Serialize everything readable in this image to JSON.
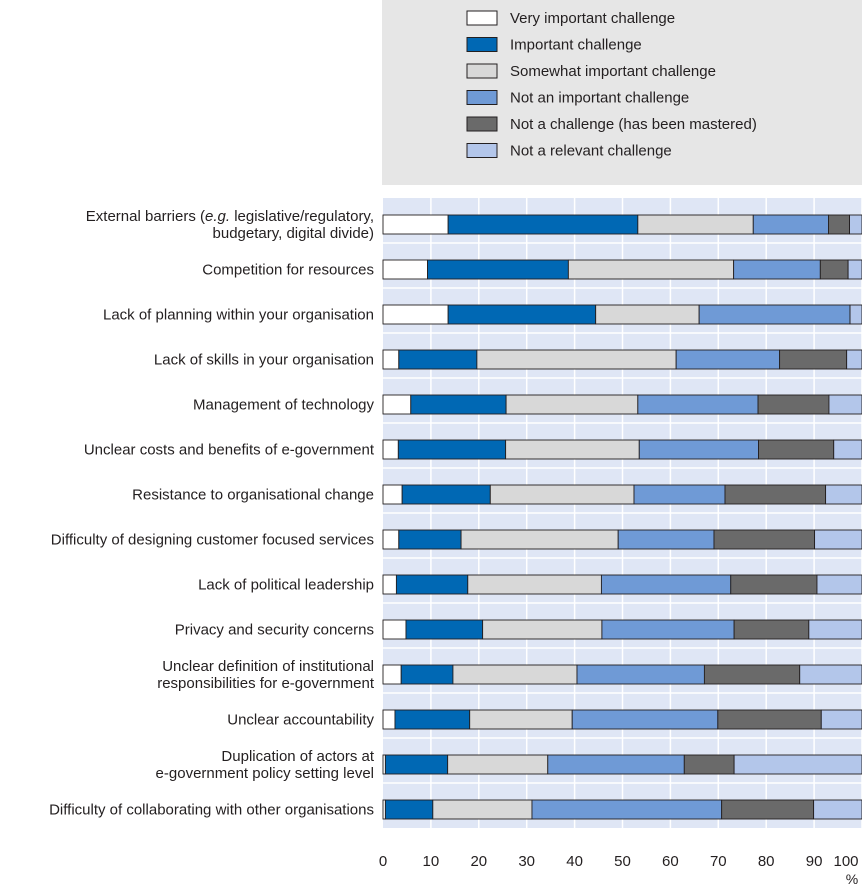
{
  "chart_data": {
    "type": "bar",
    "orientation": "horizontal",
    "stacked": true,
    "xlim": [
      0,
      100
    ],
    "x_ticks": [
      "0",
      "10",
      "20",
      "30",
      "40",
      "50",
      "60",
      "70",
      "80",
      "90",
      "100"
    ],
    "unit_label": "%",
    "grid": true,
    "legend_position": "top",
    "categories": [
      [
        "External barriers (e.g. legislative/regulatory,",
        "budgetary, digital divide)"
      ],
      [
        "Competition for resources"
      ],
      [
        "Lack of planning within your organisation"
      ],
      [
        "Lack of skills in your organisation"
      ],
      [
        "Management of technology"
      ],
      [
        "Unclear costs and benefits of e-government"
      ],
      [
        "Resistance to organisational change"
      ],
      [
        "Difficulty of designing customer focused services"
      ],
      [
        "Lack of political leadership"
      ],
      [
        "Privacy and security concerns"
      ],
      [
        "Unclear definition of institutional",
        "responsibilities for e-government"
      ],
      [
        "Unclear accountability"
      ],
      [
        "Duplication of actors at",
        "e-government policy setting level"
      ],
      [
        "Difficulty of collaborating with other organisations"
      ]
    ],
    "series": [
      {
        "name": "Very important challenge",
        "color": "#ffffff",
        "values": [
          13.6,
          9.3,
          13.6,
          3.3,
          5.8,
          3.2,
          4.0,
          3.3,
          2.8,
          4.8,
          3.8,
          2.5,
          0.5,
          0.5
        ]
      },
      {
        "name": "Important challenge",
        "color": "#0068b4",
        "values": [
          39.6,
          29.4,
          30.8,
          16.3,
          19.9,
          22.4,
          18.4,
          13.0,
          14.9,
          16.0,
          10.8,
          15.6,
          13.0,
          9.9
        ]
      },
      {
        "name": "Somewhat important challenge",
        "color": "#d8d8d8",
        "values": [
          24.1,
          34.5,
          21.6,
          41.6,
          27.5,
          27.9,
          30.0,
          32.8,
          27.9,
          24.9,
          25.9,
          21.4,
          20.9,
          20.7
        ]
      },
      {
        "name": "Not an important challenge",
        "color": "#6f9ad6",
        "values": [
          15.7,
          18.1,
          31.5,
          21.6,
          25.1,
          24.9,
          19.0,
          20.0,
          27.0,
          27.6,
          26.6,
          30.4,
          28.5,
          39.6
        ]
      },
      {
        "name": "Not a challenge (has been mastered)",
        "color": "#6a6a6a",
        "values": [
          4.4,
          5.8,
          0.0,
          14.0,
          14.8,
          15.7,
          21.0,
          21.0,
          18.0,
          15.6,
          19.9,
          21.6,
          10.4,
          19.2
        ]
      },
      {
        "name": "Not a relevant challenge",
        "color": "#b3c6ea",
        "values": [
          2.6,
          2.9,
          2.5,
          3.2,
          6.9,
          5.9,
          7.6,
          9.9,
          9.4,
          11.1,
          13.0,
          8.5,
          26.7,
          10.1
        ]
      }
    ]
  }
}
